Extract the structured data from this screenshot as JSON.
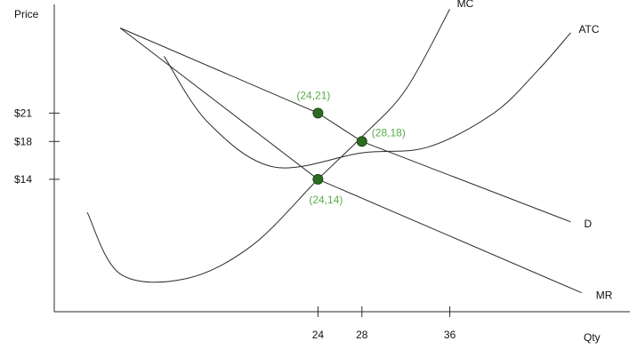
{
  "chart_data": {
    "type": "line",
    "title": "",
    "xlabel": "Qty",
    "ylabel": "Price",
    "x_ticks": [
      24,
      28,
      36
    ],
    "y_ticks": [
      {
        "value": 21,
        "label": "$21"
      },
      {
        "value": 18,
        "label": "$18"
      },
      {
        "value": 14,
        "label": "$14"
      }
    ],
    "series": [
      {
        "name": "MC",
        "x": [
          3,
          6,
          12,
          18,
          24,
          28,
          32,
          36
        ],
        "y": [
          10.5,
          4,
          3.5,
          7,
          14,
          18.5,
          23.5,
          32
        ]
      },
      {
        "name": "ATC",
        "x": [
          10,
          14,
          20,
          28,
          34,
          40,
          44,
          47
        ],
        "y": [
          27,
          20,
          15.3,
          16.8,
          17.4,
          21,
          25.5,
          29.5
        ]
      },
      {
        "name": "D",
        "x": [
          6,
          24,
          28,
          47
        ],
        "y": [
          30,
          21,
          18,
          9.5
        ]
      },
      {
        "name": "MR",
        "x": [
          6,
          24,
          48
        ],
        "y": [
          30,
          14,
          2
        ]
      }
    ],
    "points": [
      {
        "label": "(24,21)",
        "x": 24,
        "y": 21
      },
      {
        "label": "(28,18)",
        "x": 28,
        "y": 18
      },
      {
        "label": "(24,14)",
        "x": 24,
        "y": 14
      }
    ],
    "grid": false,
    "legend": "none",
    "colors": {
      "curve": "#2b2b2b",
      "point": "#2e6b22",
      "point_label": "#5aab4a"
    }
  }
}
